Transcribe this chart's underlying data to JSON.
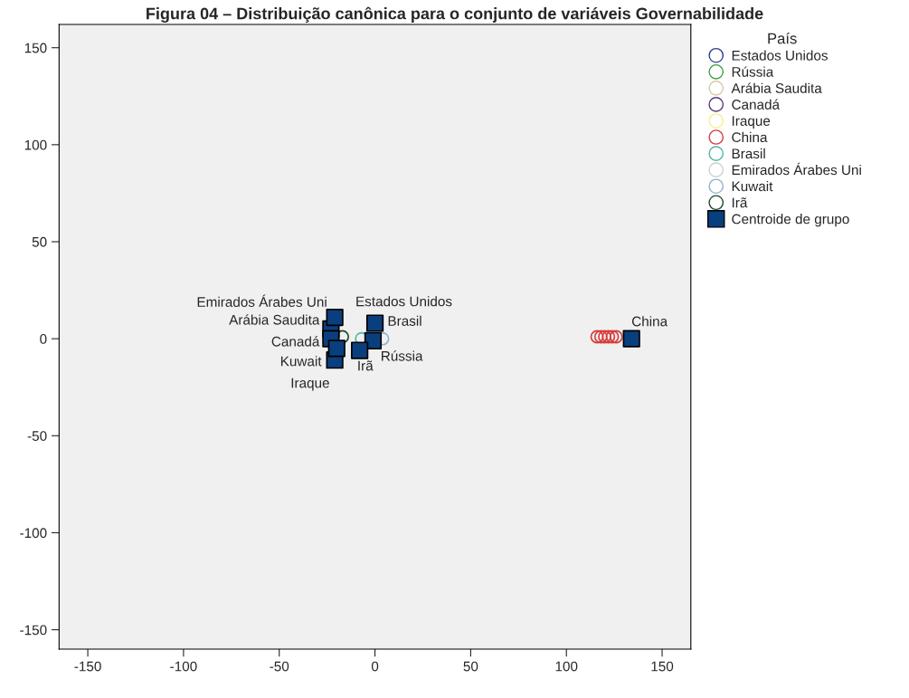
{
  "chart_data": {
    "type": "scatter",
    "title": "Figura 04 – Distribuição canônica para o conjunto de variáveis Governabilidade",
    "legend_title": "País",
    "legend": "right",
    "grid": false,
    "marker": "circle",
    "xlim": [
      -165,
      165
    ],
    "ylim": [
      -160,
      162
    ],
    "xticks": [
      -150,
      -100,
      -50,
      0,
      50,
      100,
      150
    ],
    "yticks": [
      -150,
      -100,
      -50,
      0,
      50,
      100,
      150
    ],
    "series": [
      {
        "name": "Estados Unidos",
        "color": "#2f3b8f"
      },
      {
        "name": "Rússia",
        "color": "#3ca03c"
      },
      {
        "name": "Arábia Saudita",
        "color": "#d8c8a8"
      },
      {
        "name": "Canadá",
        "color": "#5a3a7a"
      },
      {
        "name": "Iraque",
        "color": "#f5f08a"
      },
      {
        "name": "China",
        "color": "#d83c3c",
        "x": [
          116,
          118,
          120,
          122,
          124,
          126
        ],
        "values": [
          1,
          1,
          1,
          1,
          1,
          1
        ]
      },
      {
        "name": "Brasil",
        "color": "#4fb8a8",
        "x": [
          -7
        ],
        "values": [
          0
        ]
      },
      {
        "name": "Emirados Árabes Uni",
        "color": "#d0d0d0"
      },
      {
        "name": "Kuwait",
        "color": "#90b0cc",
        "x": [
          4
        ],
        "values": [
          0
        ]
      },
      {
        "name": "Irã",
        "color": "#1e4a2a",
        "x": [
          -17
        ],
        "values": [
          1
        ]
      },
      {
        "name": "Centroide de grupo",
        "color": "#0a3f7f",
        "marker": "square",
        "x": [
          null,
          -1,
          -23,
          -23,
          -21,
          134,
          0,
          -21,
          -20,
          -8
        ],
        "values": [
          null,
          -1,
          5,
          0,
          -11,
          0,
          8,
          11,
          -5,
          -6
        ]
      }
    ],
    "annotations": [
      {
        "text": "Estados Unidos",
        "x": -1,
        "y": 9
      },
      {
        "text": "Rússia",
        "x": -1,
        "y": -1
      },
      {
        "text": "Arábia Saudita",
        "x": -23,
        "y": 6
      },
      {
        "text": "Canadá",
        "x": -23,
        "y": 0
      },
      {
        "text": "Iraque",
        "x": -21,
        "y": -11
      },
      {
        "text": "China",
        "x": 134,
        "y": 0
      },
      {
        "text": "Brasil",
        "x": 0,
        "y": 8
      },
      {
        "text": "Emirados Árabes Uni",
        "x": -21,
        "y": 10
      },
      {
        "text": "Kuwait",
        "x": -20,
        "y": -5
      },
      {
        "text": "Irã",
        "x": -8,
        "y": -6
      }
    ]
  }
}
